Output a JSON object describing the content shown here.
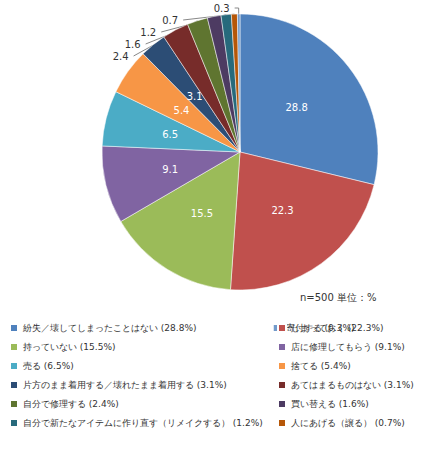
{
  "chart_data": {
    "type": "pie",
    "categories": [
      "紛失／壊してしまったことはない (28.8%)",
      "しまっておく (22.3%)",
      "持っていない (15.5%)",
      "店に修理してもらう (9.1%)",
      "売る (6.5%)",
      "捨てる (5.4%)",
      "片方のまま着用する／壊れたまま着用する (3.1%)",
      "あてはまるものはない (3.1%)",
      "自分で修理する (2.4%)",
      "買い替える (1.6%)",
      "自分で新たなアイテムに作り直す（リメイクする） (1.2%)",
      "人にあげる（譲る） (0.7%)",
      "寄付する (0.3%)"
    ],
    "values": [
      28.8,
      22.3,
      15.5,
      9.1,
      6.5,
      5.4,
      3.1,
      3.1,
      2.4,
      1.6,
      1.2,
      0.7,
      0.3
    ],
    "colors": [
      "#4F81BD",
      "#C0504D",
      "#9BBB59",
      "#8064A2",
      "#4BACC6",
      "#F79646",
      "#2C4D75",
      "#772C2A",
      "#5F7530",
      "#4D3B62",
      "#276A7C",
      "#B65708",
      "#729ACA"
    ],
    "data_labels": true,
    "legend": "bottom",
    "annotations": [
      "n=500 単位：%"
    ]
  }
}
